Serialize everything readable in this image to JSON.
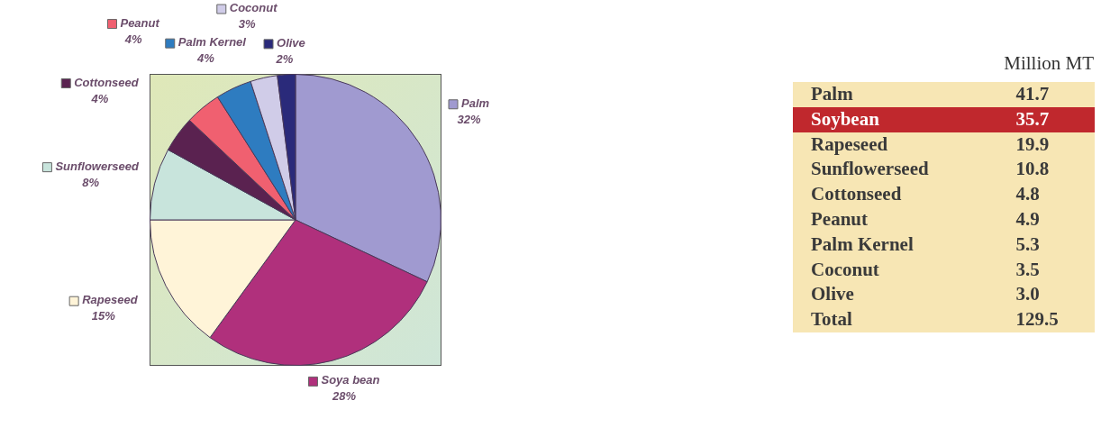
{
  "chart_data": [
    {
      "type": "pie",
      "categories": [
        "Palm",
        "Soya bean",
        "Rapeseed",
        "Sunflowerseed",
        "Cottonseed",
        "Peanut",
        "Palm Kernel",
        "Coconut",
        "Olive"
      ],
      "values": [
        32,
        28,
        15,
        8,
        4,
        4,
        4,
        3,
        2
      ],
      "value_labels": [
        "32%",
        "28%",
        "15%",
        "8%",
        "4%",
        "4%",
        "4%",
        "3%",
        "2%"
      ],
      "colors": [
        "#a09ad0",
        "#b0307c",
        "#fff4d8",
        "#c8e4dc",
        "#5a2250",
        "#f06070",
        "#2e7cc0",
        "#d0cce8",
        "#2a2a7a"
      ],
      "legend": "left"
    },
    {
      "type": "other",
      "title": "Million MT",
      "categories": [
        "Palm",
        "Soybean",
        "Rapeseed",
        "Sunflowerseed",
        "Cottonseed",
        "Peanut",
        "Palm Kernel",
        "Coconut",
        "Olive",
        "Total"
      ],
      "value_labels": [
        "41.7",
        "35.7",
        "19.9",
        "10.8",
        "4.8",
        "4.9",
        "5.3",
        "3.5",
        "3.0",
        "129.5"
      ],
      "colors": [
        "#f7e6b4",
        "#c0282d",
        "#f7e6b4",
        "#f7e6b4",
        "#f7e6b4",
        "#f7e6b4",
        "#f7e6b4",
        "#f7e6b4",
        "#f7e6b4",
        "#f7e6b4"
      ]
    }
  ]
}
